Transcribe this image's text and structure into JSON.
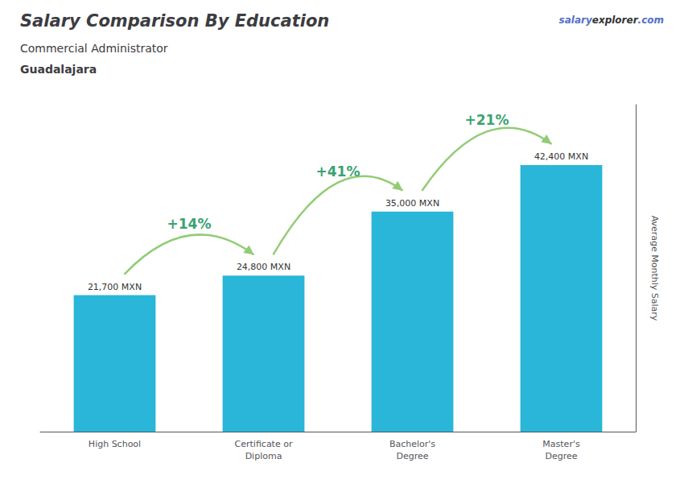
{
  "chart_data": {
    "type": "bar",
    "title": "Salary Comparison By Education",
    "subtitle": "Commercial Administrator",
    "city": "Guadalajara",
    "watermark": [
      "salary",
      "explorer",
      ".com"
    ],
    "ylabel": "Average Monthly Salary",
    "categories": [
      "High School",
      "Certificate or\nDiploma",
      "Bachelor's\nDegree",
      "Master's\nDegree"
    ],
    "values": [
      21700,
      24800,
      35000,
      42400
    ],
    "value_labels": [
      "21,700 MXN",
      "24,800 MXN",
      "35,000 MXN",
      "42,400 MXN"
    ],
    "data_labels": true,
    "annotations": [
      "+14%",
      "+41%",
      "+21%"
    ],
    "color": "#29b6d8",
    "ylim": [
      0,
      52000
    ],
    "tick_labels": "x",
    "grid": false
  }
}
